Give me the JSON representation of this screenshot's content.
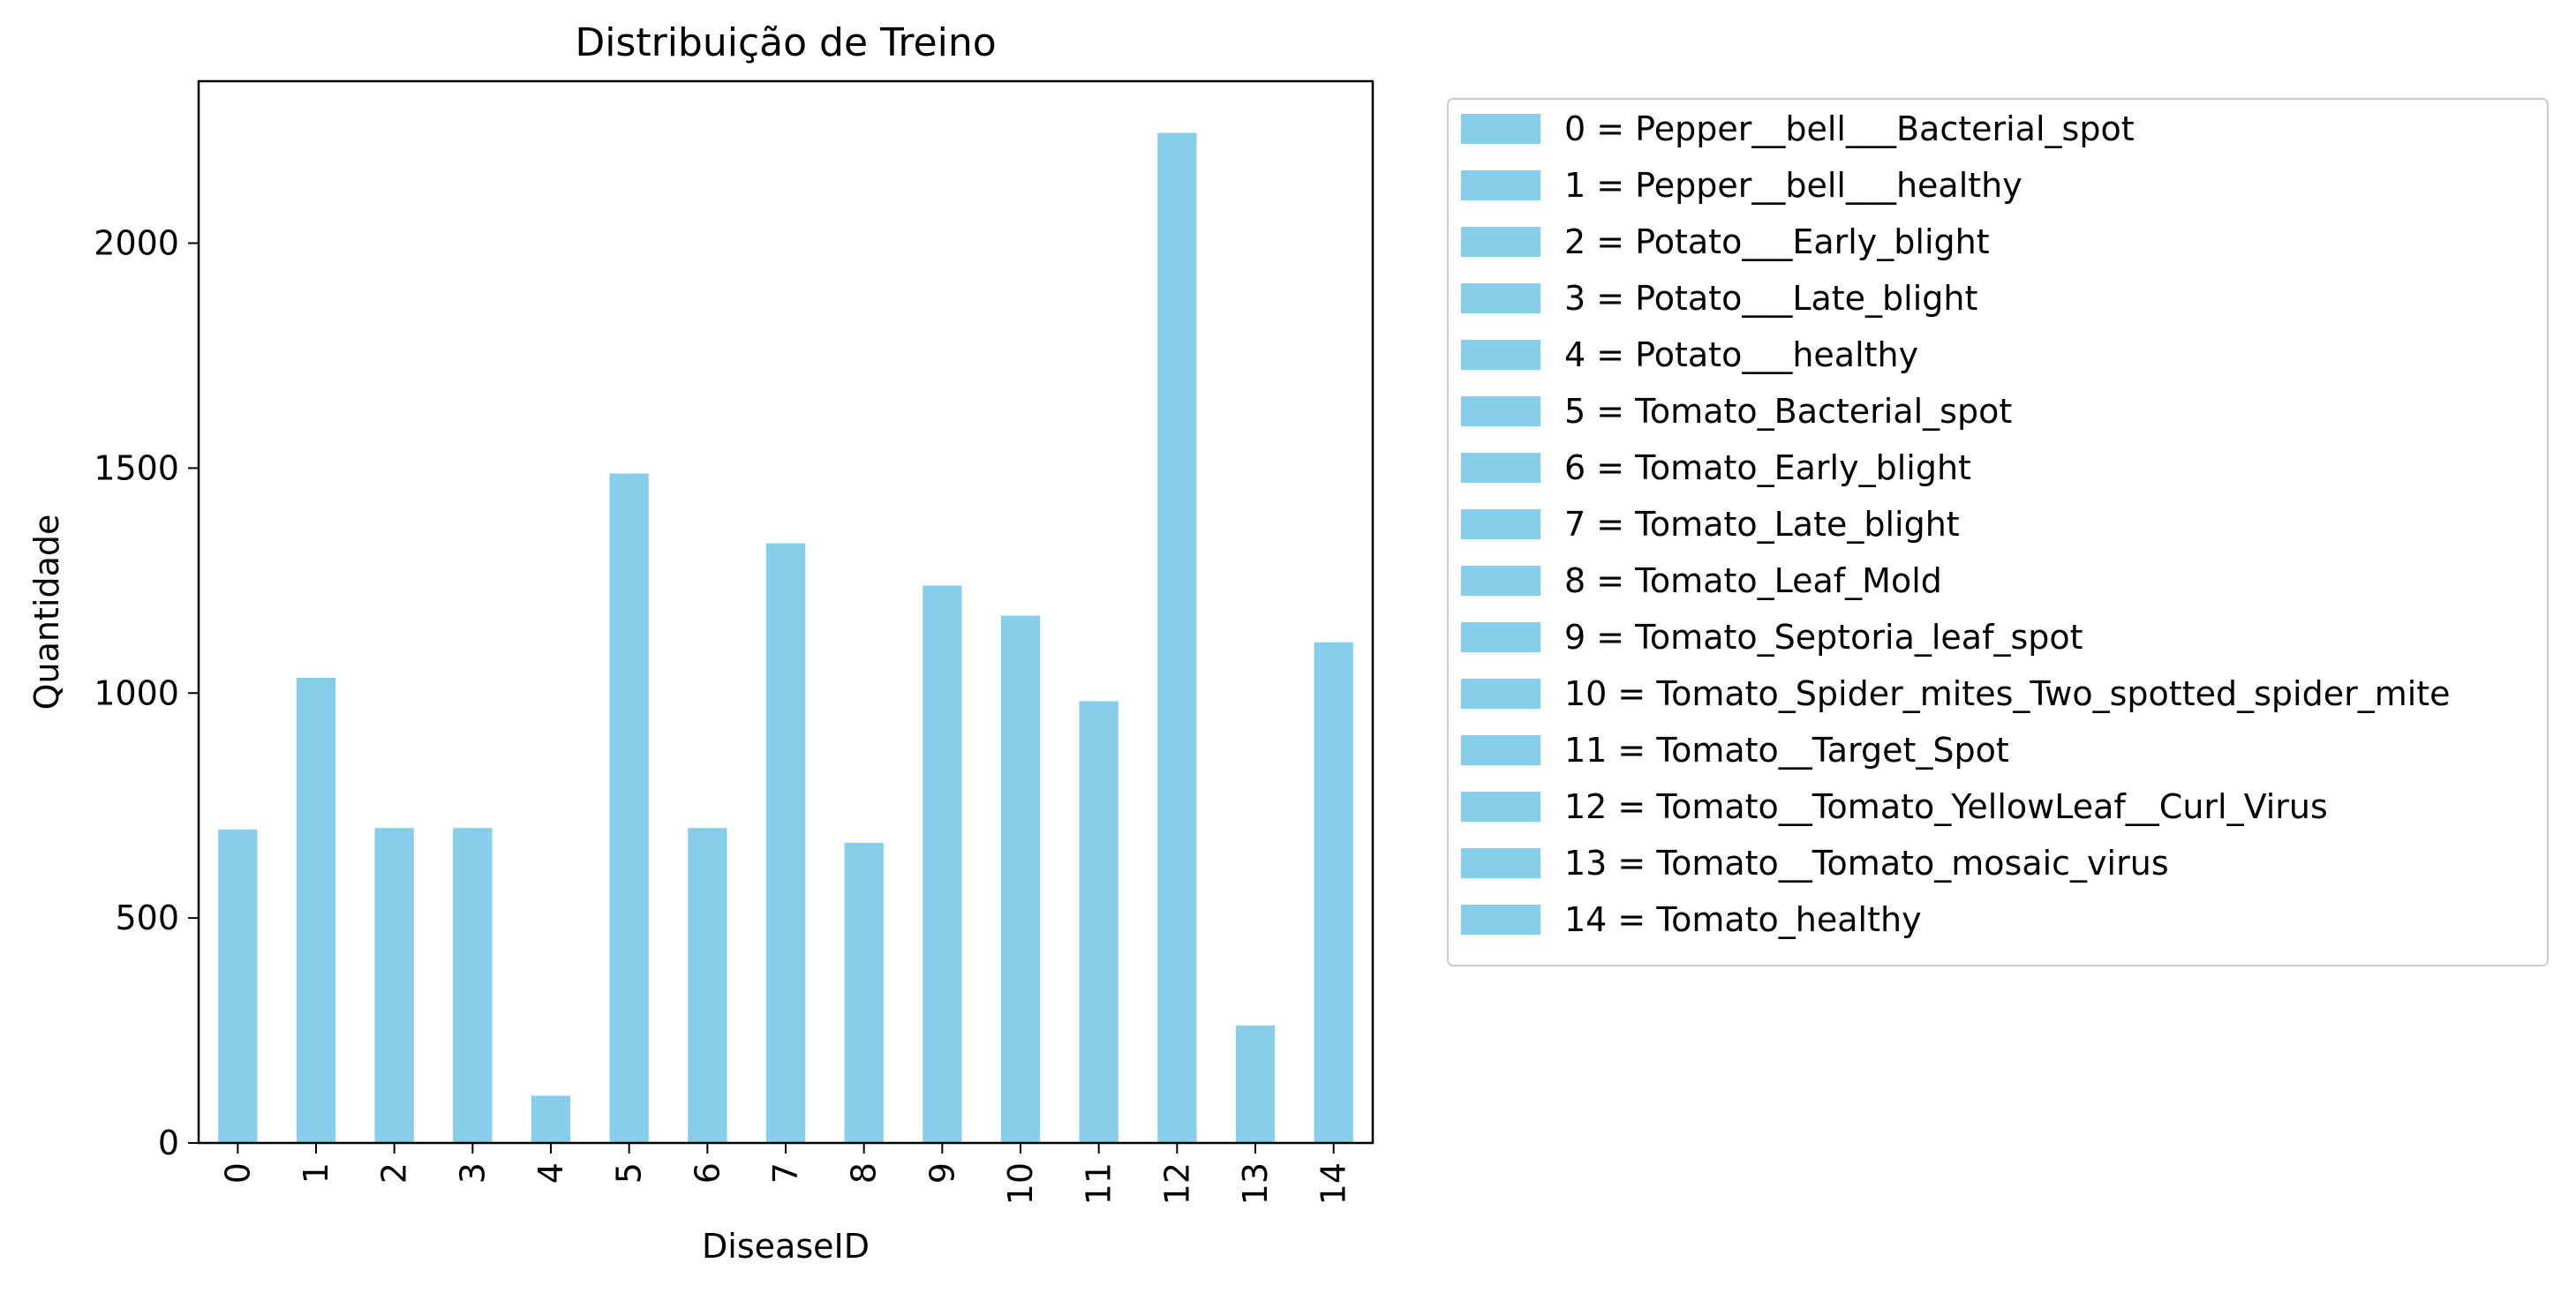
{
  "chart_data": {
    "type": "bar",
    "title": "Distribuição de Treino",
    "xlabel": "DiseaseID",
    "ylabel": "Quantidade",
    "categories": [
      "0",
      "1",
      "2",
      "3",
      "4",
      "5",
      "6",
      "7",
      "8",
      "9",
      "10",
      "11",
      "12",
      "13",
      "14"
    ],
    "values": [
      697,
      1034,
      700,
      700,
      105,
      1488,
      700,
      1333,
      667,
      1239,
      1172,
      982,
      2245,
      261,
      1113
    ],
    "ylim": [
      0,
      2360
    ],
    "yticks": [
      0,
      500,
      1000,
      1500,
      2000
    ],
    "bar_color": "#87CEEB",
    "grid": false,
    "legend": {
      "placement": "outside-right",
      "entries": [
        "0 = Pepper__bell___Bacterial_spot",
        "1 = Pepper__bell___healthy",
        "2 = Potato___Early_blight",
        "3 = Potato___Late_blight",
        "4 = Potato___healthy",
        "5 = Tomato_Bacterial_spot",
        "6 = Tomato_Early_blight",
        "7 = Tomato_Late_blight",
        "8 = Tomato_Leaf_Mold",
        "9 = Tomato_Septoria_leaf_spot",
        "10 = Tomato_Spider_mites_Two_spotted_spider_mite",
        "11 = Tomato__Target_Spot",
        "12 = Tomato__Tomato_YellowLeaf__Curl_Virus",
        "13 = Tomato__Tomato_mosaic_virus",
        "14 = Tomato_healthy"
      ]
    }
  }
}
